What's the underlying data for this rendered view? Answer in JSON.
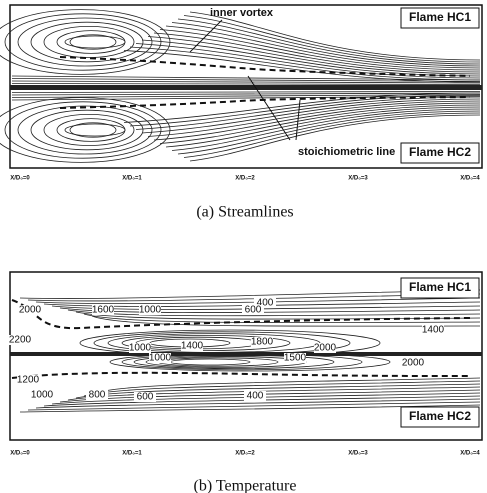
{
  "panels": [
    {
      "annotations": [
        "inner vortex",
        "stoichiometric line"
      ],
      "flame_labels": [
        "Flame HC1",
        "Flame HC2"
      ],
      "x_labels": [
        "X/D₀=0",
        "X/D₀=1",
        "X/D₀=2",
        "X/D₀=3",
        "X/D₀=4"
      ],
      "caption": "(a)  Streamlines"
    },
    {
      "contour_labels": [
        "400",
        "2000",
        "1600",
        "1000",
        "600",
        "1400",
        "2200",
        "1000",
        "1400",
        "1800",
        "2000",
        "1000",
        "1500",
        "2000",
        "1200",
        "1000",
        "800",
        "600",
        "400"
      ],
      "flame_labels": [
        "Flame HC1",
        "Flame HC2"
      ],
      "x_labels": [
        "X/D₀=0",
        "X/D₀=1",
        "X/D₀=2",
        "X/D₀=3",
        "X/D₀=4"
      ],
      "caption": "(b)  Temperature"
    }
  ]
}
